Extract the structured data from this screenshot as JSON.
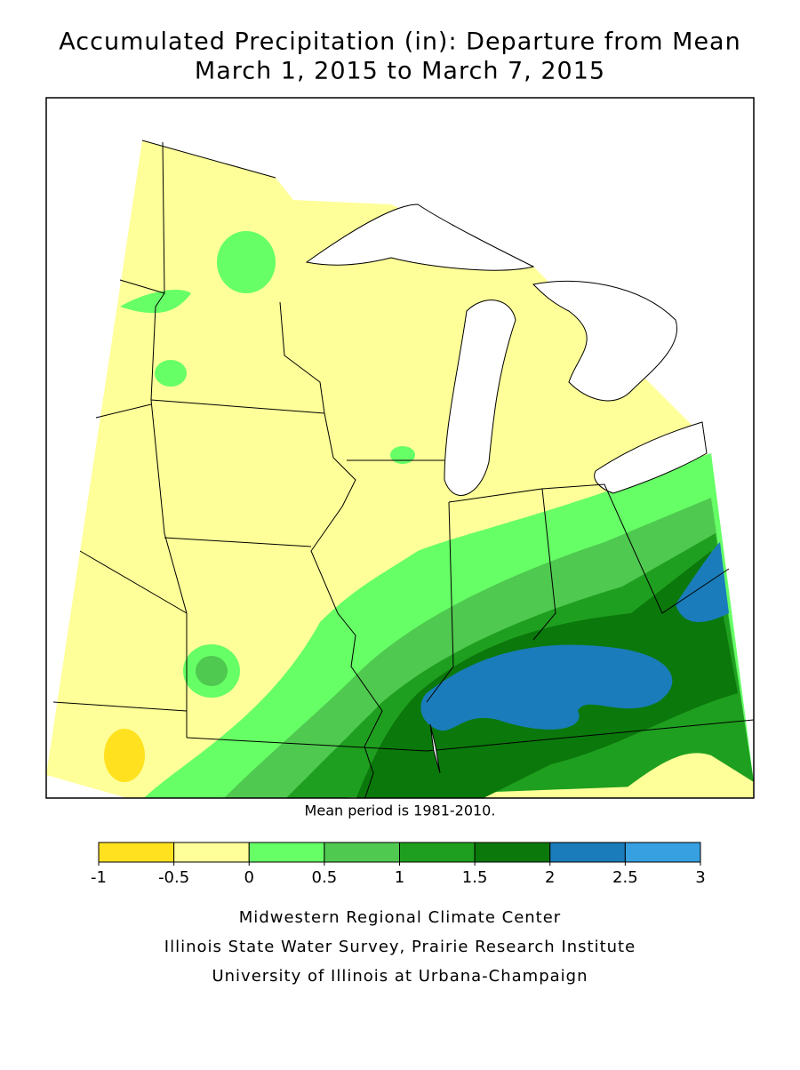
{
  "header": {
    "title_lines": [
      "Accumulated Precipitation (in): Departure from Mean",
      "March 1, 2015 to March 7, 2015"
    ]
  },
  "note": "Mean period is 1981-2010.",
  "legend": {
    "colors": [
      "#ffe11f",
      "#ffff99",
      "#66ff66",
      "#4fc94f",
      "#1f9f1f",
      "#0b780b",
      "#1a7cba",
      "#36a0e0"
    ],
    "ticks": [
      -1,
      -0.5,
      0,
      0.5,
      1,
      1.5,
      2,
      2.5,
      3
    ]
  },
  "credits": [
    "Midwestern Regional Climate Center",
    "Illinois State Water Survey, Prairie Research Institute",
    "University of Illinois at Urbana-Champaign"
  ]
}
